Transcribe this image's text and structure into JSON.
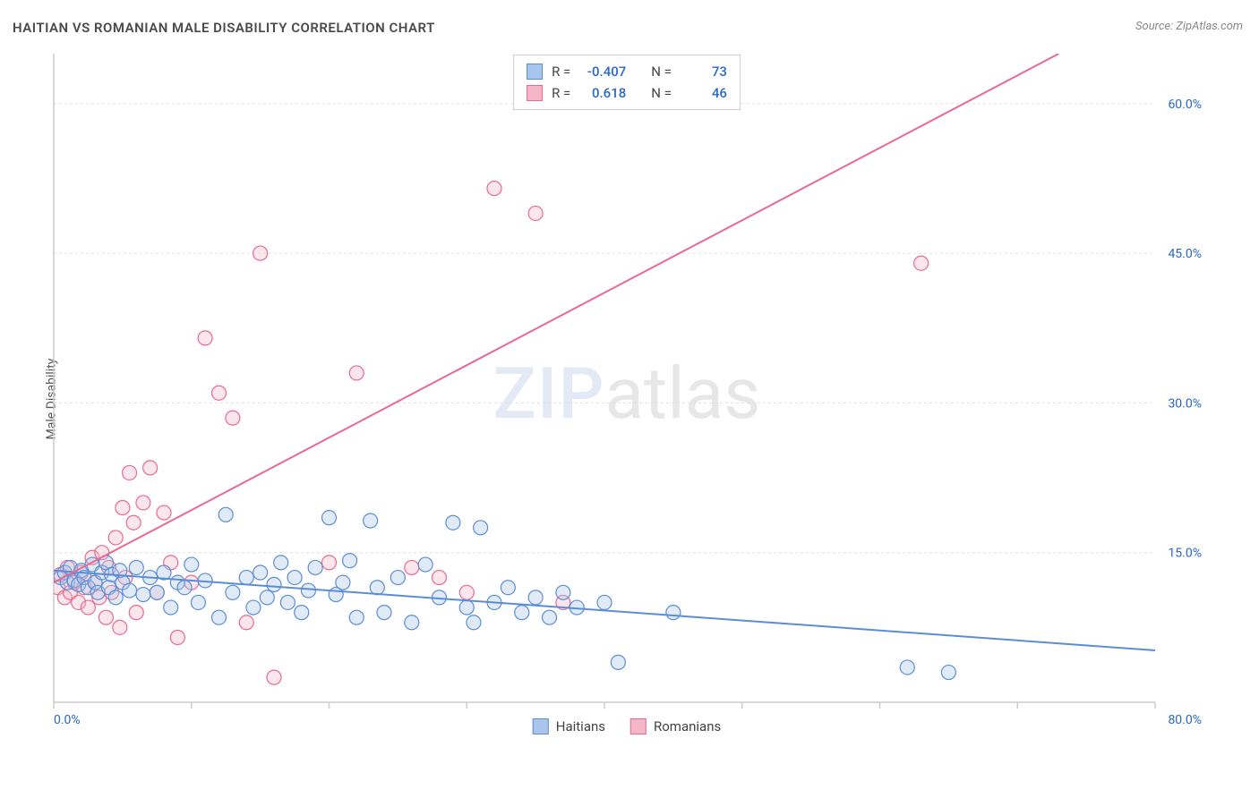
{
  "title": "HAITIAN VS ROMANIAN MALE DISABILITY CORRELATION CHART",
  "source": "Source: ZipAtlas.com",
  "y_axis_label": "Male Disability",
  "watermark": {
    "part1": "ZIP",
    "part2": "atlas"
  },
  "chart": {
    "type": "scatter",
    "background_color": "#ffffff",
    "grid_color": "#e0e0e0",
    "axis_color": "#cccccc",
    "tick_label_color": "#2968c8",
    "xlim": [
      0,
      80
    ],
    "ylim": [
      0,
      65
    ],
    "x_ticks": [
      0,
      10,
      20,
      30,
      40,
      50,
      60,
      70,
      80
    ],
    "x_tick_labels": {
      "0": "0.0%",
      "80": "80.0%"
    },
    "y_ticks": [
      15,
      30,
      45,
      60
    ],
    "y_tick_labels": {
      "15": "15.0%",
      "30": "30.0%",
      "45": "45.0%",
      "60": "60.0%"
    },
    "marker_radius": 8,
    "marker_fill_opacity": 0.35,
    "line_width": 2
  },
  "series": {
    "haitians": {
      "label": "Haitians",
      "color": "#5b8dd6",
      "fill": "#a8c5ec",
      "R": "-0.407",
      "N": "73",
      "trend": {
        "x1": 0,
        "y1": 13.2,
        "x2": 80,
        "y2": 5.2
      },
      "points": [
        [
          0.5,
          12.5
        ],
        [
          0.8,
          13.0
        ],
        [
          1.0,
          12.0
        ],
        [
          1.2,
          13.5
        ],
        [
          1.5,
          12.2
        ],
        [
          1.8,
          11.8
        ],
        [
          2.0,
          13.2
        ],
        [
          2.2,
          12.5
        ],
        [
          2.5,
          11.5
        ],
        [
          2.8,
          13.8
        ],
        [
          3.0,
          12.0
        ],
        [
          3.2,
          11.0
        ],
        [
          3.5,
          13.0
        ],
        [
          3.8,
          14.0
        ],
        [
          4.0,
          11.5
        ],
        [
          4.2,
          12.8
        ],
        [
          4.5,
          10.5
        ],
        [
          4.8,
          13.2
        ],
        [
          5.0,
          12.0
        ],
        [
          5.5,
          11.2
        ],
        [
          6.0,
          13.5
        ],
        [
          6.5,
          10.8
        ],
        [
          7.0,
          12.5
        ],
        [
          7.5,
          11.0
        ],
        [
          8.0,
          13.0
        ],
        [
          8.5,
          9.5
        ],
        [
          9.0,
          12.0
        ],
        [
          9.5,
          11.5
        ],
        [
          10.0,
          13.8
        ],
        [
          10.5,
          10.0
        ],
        [
          11.0,
          12.2
        ],
        [
          12.0,
          8.5
        ],
        [
          12.5,
          18.8
        ],
        [
          13.0,
          11.0
        ],
        [
          14.0,
          12.5
        ],
        [
          14.5,
          9.5
        ],
        [
          15.0,
          13.0
        ],
        [
          15.5,
          10.5
        ],
        [
          16.0,
          11.8
        ],
        [
          16.5,
          14.0
        ],
        [
          17.0,
          10.0
        ],
        [
          17.5,
          12.5
        ],
        [
          18.0,
          9.0
        ],
        [
          18.5,
          11.2
        ],
        [
          19.0,
          13.5
        ],
        [
          20.0,
          18.5
        ],
        [
          20.5,
          10.8
        ],
        [
          21.0,
          12.0
        ],
        [
          21.5,
          14.2
        ],
        [
          22.0,
          8.5
        ],
        [
          23.0,
          18.2
        ],
        [
          23.5,
          11.5
        ],
        [
          24.0,
          9.0
        ],
        [
          25.0,
          12.5
        ],
        [
          26.0,
          8.0
        ],
        [
          27.0,
          13.8
        ],
        [
          28.0,
          10.5
        ],
        [
          29.0,
          18.0
        ],
        [
          30.0,
          9.5
        ],
        [
          30.5,
          8.0
        ],
        [
          31.0,
          17.5
        ],
        [
          32.0,
          10.0
        ],
        [
          33.0,
          11.5
        ],
        [
          34.0,
          9.0
        ],
        [
          35.0,
          10.5
        ],
        [
          36.0,
          8.5
        ],
        [
          37.0,
          11.0
        ],
        [
          38.0,
          9.5
        ],
        [
          40.0,
          10.0
        ],
        [
          41.0,
          4.0
        ],
        [
          45.0,
          9.0
        ],
        [
          62.0,
          3.5
        ],
        [
          65.0,
          3.0
        ]
      ]
    },
    "romanians": {
      "label": "Romanians",
      "color": "#e86a8f",
      "fill": "#f4b6c8",
      "R": "0.618",
      "N": "46",
      "trend": {
        "x1": 0,
        "y1": 12.0,
        "x2": 73,
        "y2": 65.0
      },
      "points": [
        [
          0.3,
          11.5
        ],
        [
          0.5,
          12.8
        ],
        [
          0.8,
          10.5
        ],
        [
          1.0,
          13.5
        ],
        [
          1.2,
          11.0
        ],
        [
          1.5,
          12.0
        ],
        [
          1.8,
          10.0
        ],
        [
          2.0,
          13.0
        ],
        [
          2.2,
          11.5
        ],
        [
          2.5,
          9.5
        ],
        [
          2.8,
          14.5
        ],
        [
          3.0,
          12.0
        ],
        [
          3.3,
          10.5
        ],
        [
          3.5,
          15.0
        ],
        [
          3.8,
          8.5
        ],
        [
          4.0,
          13.5
        ],
        [
          4.2,
          11.0
        ],
        [
          4.5,
          16.5
        ],
        [
          4.8,
          7.5
        ],
        [
          5.0,
          19.5
        ],
        [
          5.2,
          12.5
        ],
        [
          5.5,
          23.0
        ],
        [
          5.8,
          18.0
        ],
        [
          6.0,
          9.0
        ],
        [
          6.5,
          20.0
        ],
        [
          7.0,
          23.5
        ],
        [
          7.5,
          11.0
        ],
        [
          8.0,
          19.0
        ],
        [
          8.5,
          14.0
        ],
        [
          9.0,
          6.5
        ],
        [
          10.0,
          12.0
        ],
        [
          11.0,
          36.5
        ],
        [
          12.0,
          31.0
        ],
        [
          13.0,
          28.5
        ],
        [
          14.0,
          8.0
        ],
        [
          15.0,
          45.0
        ],
        [
          16.0,
          2.5
        ],
        [
          20.0,
          14.0
        ],
        [
          22.0,
          33.0
        ],
        [
          26.0,
          13.5
        ],
        [
          28.0,
          12.5
        ],
        [
          30.0,
          11.0
        ],
        [
          32.0,
          51.5
        ],
        [
          35.0,
          49.0
        ],
        [
          37.0,
          10.0
        ],
        [
          63.0,
          44.0
        ]
      ]
    }
  },
  "legend_top": {
    "r_label": "R =",
    "n_label": "N ="
  }
}
